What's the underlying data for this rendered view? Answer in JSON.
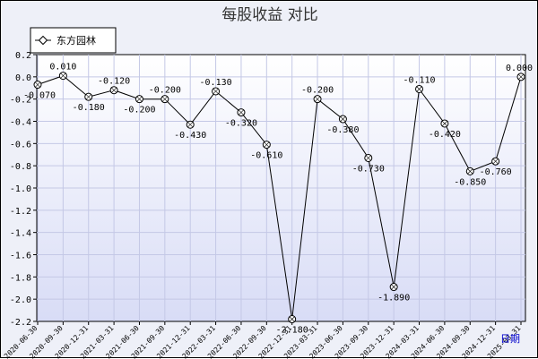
{
  "chart_data": {
    "type": "line",
    "title": "每股收益  对比",
    "xlabel": "",
    "ylabel": "",
    "ylim": [
      -2.2,
      0.2
    ],
    "yticks": [
      0.2,
      0.0,
      -0.2,
      -0.4,
      -0.6,
      -0.8,
      -1.0,
      -1.2,
      -1.4,
      -1.6,
      -1.8,
      -2.0,
      -2.2
    ],
    "ytick_labels": [
      "0.2",
      "0.0",
      "-0.2",
      "-0.4",
      "-0.6",
      "-0.8",
      "-1.0",
      "-1.2",
      "-1.4",
      "-1.6",
      "-1.8",
      "-2.0",
      "-2.2"
    ],
    "grid": true,
    "legend_position": "top-left",
    "period_label": "日期",
    "categories": [
      "2020-06-30",
      "2020-09-30",
      "2020-12-31",
      "2021-03-31",
      "2021-06-30",
      "2021-09-30",
      "2021-12-31",
      "2022-03-31",
      "2022-06-30",
      "2022-09-30",
      "2022-12-31",
      "2023-03-31",
      "2023-06-30",
      "2023-09-30",
      "2023-12-31",
      "2024-03-31",
      "2024-06-30",
      "2024-09-30",
      "2024-12-31",
      "2025-03-31"
    ],
    "series": [
      {
        "name": "东方园林",
        "values": [
          -0.07,
          0.01,
          -0.18,
          -0.12,
          -0.2,
          -0.2,
          -0.43,
          -0.13,
          -0.32,
          -0.61,
          -2.18,
          -0.2,
          -0.38,
          -0.73,
          -1.89,
          -0.11,
          -0.42,
          -0.85,
          -0.76,
          0.0
        ],
        "labels": [
          "-0.070",
          "0.010",
          "-0.180",
          "-0.120",
          "-0.200",
          "-0.200",
          "-0.430",
          "-0.130",
          "-0.320",
          "-0.610",
          "-2.180",
          "-0.200",
          "-0.380",
          "-0.730",
          "-1.890",
          "-0.110",
          "-0.420",
          "-0.850",
          "-0.760",
          "0.000"
        ]
      }
    ],
    "colors": {
      "plot_bg_top": "#ffffff",
      "plot_bg_bottom": "#d8dcf6",
      "grid": "#c4c8e6",
      "line": "#000000",
      "marker_fill": "#ffffff"
    }
  }
}
